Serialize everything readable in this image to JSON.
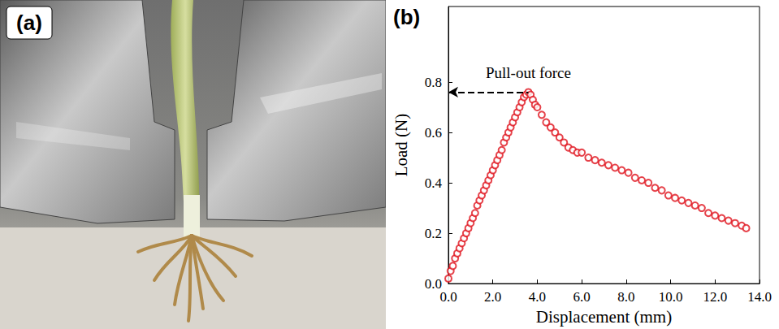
{
  "photo_panel": {
    "label": "(a)"
  },
  "chart_data": {
    "type": "scatter",
    "panel_label": "(b)",
    "x_label": "Displacement (mm)",
    "y_label": "Load (N)",
    "x": [
      0.0,
      0.1,
      0.2,
      0.3,
      0.4,
      0.5,
      0.6,
      0.7,
      0.8,
      0.9,
      1.0,
      1.1,
      1.2,
      1.3,
      1.4,
      1.5,
      1.6,
      1.7,
      1.8,
      1.9,
      2.0,
      2.1,
      2.2,
      2.3,
      2.4,
      2.5,
      2.6,
      2.7,
      2.8,
      2.9,
      3.0,
      3.1,
      3.2,
      3.3,
      3.4,
      3.5,
      3.6,
      3.7,
      3.8,
      3.9,
      4.0,
      4.2,
      4.4,
      4.6,
      4.8,
      5.0,
      5.2,
      5.4,
      5.6,
      5.8,
      6.0,
      6.3,
      6.6,
      6.9,
      7.2,
      7.5,
      7.8,
      8.1,
      8.4,
      8.7,
      9.0,
      9.3,
      9.6,
      9.9,
      10.2,
      10.5,
      10.8,
      11.1,
      11.4,
      11.7,
      12.0,
      12.3,
      12.6,
      12.9,
      13.2,
      13.4
    ],
    "values": [
      0.02,
      0.05,
      0.07,
      0.1,
      0.12,
      0.14,
      0.16,
      0.18,
      0.2,
      0.22,
      0.24,
      0.26,
      0.28,
      0.31,
      0.33,
      0.35,
      0.37,
      0.39,
      0.41,
      0.43,
      0.45,
      0.47,
      0.49,
      0.51,
      0.53,
      0.56,
      0.58,
      0.6,
      0.62,
      0.64,
      0.66,
      0.68,
      0.7,
      0.72,
      0.74,
      0.75,
      0.76,
      0.75,
      0.73,
      0.71,
      0.7,
      0.67,
      0.64,
      0.62,
      0.6,
      0.58,
      0.56,
      0.54,
      0.53,
      0.52,
      0.52,
      0.5,
      0.49,
      0.48,
      0.47,
      0.46,
      0.45,
      0.44,
      0.42,
      0.41,
      0.4,
      0.38,
      0.37,
      0.35,
      0.34,
      0.33,
      0.32,
      0.31,
      0.3,
      0.28,
      0.27,
      0.26,
      0.25,
      0.24,
      0.23,
      0.22
    ],
    "color": "#e0141e",
    "marker": "open circle",
    "xlim": [
      0,
      14
    ],
    "xticks": [
      {
        "value": 0,
        "label": "0.0"
      },
      {
        "value": 2,
        "label": "2.0"
      },
      {
        "value": 4,
        "label": "4.0"
      },
      {
        "value": 6,
        "label": "6.0"
      },
      {
        "value": 8,
        "label": "8.0"
      },
      {
        "value": 10,
        "label": "10.0"
      },
      {
        "value": 12,
        "label": "12.0"
      },
      {
        "value": 14,
        "label": "14.0"
      }
    ],
    "ylim": [
      0,
      1.1
    ],
    "yticks": [
      {
        "value": 0,
        "label": "0.0"
      },
      0.2,
      0.4,
      0.6,
      0.8
    ],
    "grid": false,
    "annotations": [
      {
        "text": "Pull-out force",
        "x": 3.6,
        "y": 0.76
      }
    ]
  }
}
